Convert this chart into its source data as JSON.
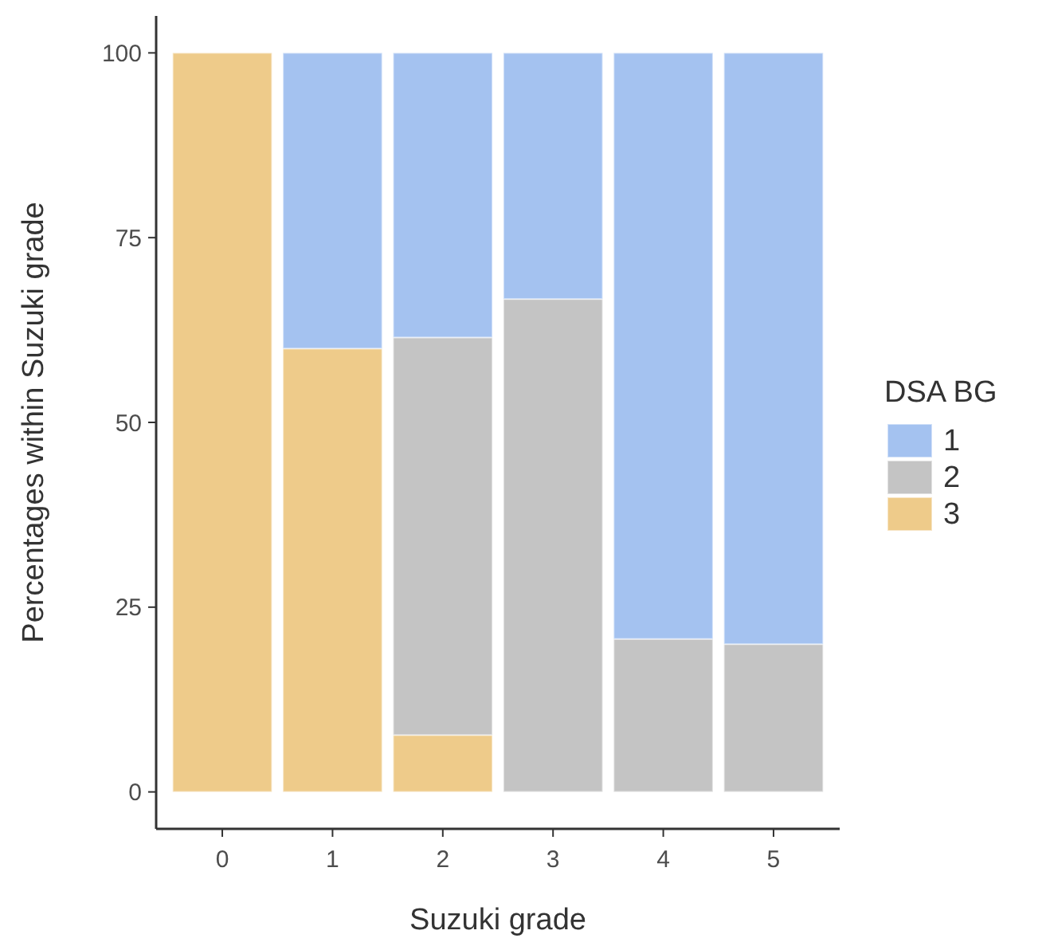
{
  "chart_data": {
    "type": "bar",
    "stacked": true,
    "xlabel": "Suzuki grade",
    "ylabel": "Percentages within Suzuki grade",
    "legend_title": "DSA BG",
    "legend": "right",
    "grid": false,
    "categories": [
      "0",
      "1",
      "2",
      "3",
      "4",
      "5"
    ],
    "series": [
      {
        "name": "3",
        "color": "#eecb8a",
        "values": [
          100,
          60,
          7.7,
          0,
          0,
          0
        ]
      },
      {
        "name": "2",
        "color": "#c4c4c4",
        "values": [
          0,
          0,
          53.8,
          66.7,
          20.7,
          20
        ]
      },
      {
        "name": "1",
        "color": "#a4c2f0",
        "values": [
          0,
          40,
          38.5,
          33.3,
          79.3,
          80
        ]
      }
    ],
    "ylim": [
      -5,
      105
    ],
    "yticks": [
      0,
      25,
      50,
      75,
      100
    ]
  }
}
